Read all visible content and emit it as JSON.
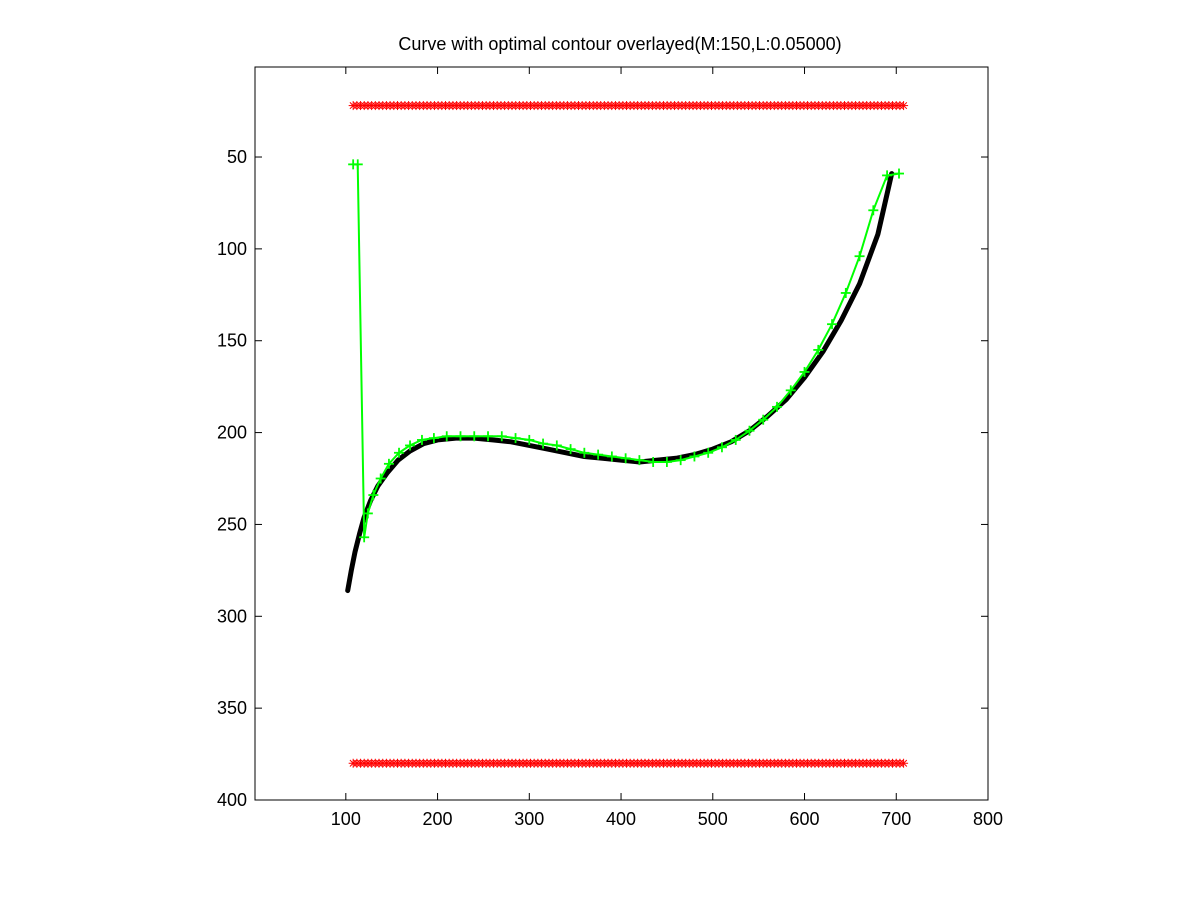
{
  "chart_data": {
    "type": "scatter",
    "title": "Curve with optimal contour overlayed(M:150,L:0.05000)",
    "xlabel": "",
    "ylabel": "",
    "xlim": [
      1,
      800
    ],
    "ylim": [
      1,
      400
    ],
    "y_reversed": true,
    "grid": false,
    "legend": "none",
    "x_ticks": [
      100,
      200,
      300,
      400,
      500,
      600,
      700,
      800
    ],
    "y_ticks": [
      50,
      100,
      150,
      200,
      250,
      300,
      350,
      400
    ],
    "series": [
      {
        "role": "curve",
        "style": "thick-line",
        "color": "#000000",
        "x": [
          102,
          106,
          110,
          115,
          120,
          127,
          135,
          145,
          157,
          170,
          185,
          200,
          220,
          240,
          260,
          280,
          300,
          320,
          340,
          360,
          380,
          400,
          420,
          440,
          460,
          480,
          500,
          520,
          540,
          560,
          580,
          600,
          620,
          640,
          660,
          680,
          695
        ],
        "y": [
          286,
          275,
          265,
          255,
          246,
          237,
          229,
          222,
          215,
          210,
          206,
          204,
          203,
          203,
          204,
          205,
          207,
          209,
          211,
          213,
          214,
          215,
          216,
          215,
          214,
          212,
          209,
          205,
          199,
          191,
          182,
          170,
          156,
          139,
          119,
          92,
          59
        ]
      },
      {
        "role": "contour",
        "style": "line-plus",
        "color": "#00ff00",
        "x": [
          108,
          113,
          120,
          124,
          130,
          138,
          147,
          158,
          170,
          183,
          196,
          210,
          225,
          240,
          255,
          270,
          285,
          300,
          315,
          330,
          345,
          360,
          375,
          390,
          405,
          420,
          435,
          450,
          465,
          480,
          495,
          510,
          525,
          540,
          555,
          570,
          585,
          600,
          615,
          630,
          645,
          660,
          675,
          690,
          703
        ],
        "y": [
          54,
          54,
          257,
          244,
          234,
          225,
          217,
          211,
          207,
          204,
          203,
          202,
          202,
          202,
          202,
          202,
          203,
          204,
          206,
          207,
          209,
          211,
          212,
          213,
          214,
          215,
          216,
          216,
          215,
          213,
          211,
          208,
          204,
          199,
          193,
          186,
          177,
          167,
          155,
          141,
          124,
          104,
          79,
          60,
          59
        ]
      },
      {
        "role": "upper-markers",
        "style": "star",
        "color": "#ff0000",
        "x_range": [
          108,
          708
        ],
        "count": 150,
        "y": 22
      },
      {
        "role": "lower-markers",
        "style": "star",
        "color": "#ff0000",
        "x_range": [
          108,
          708
        ],
        "count": 150,
        "y": 380
      }
    ]
  }
}
